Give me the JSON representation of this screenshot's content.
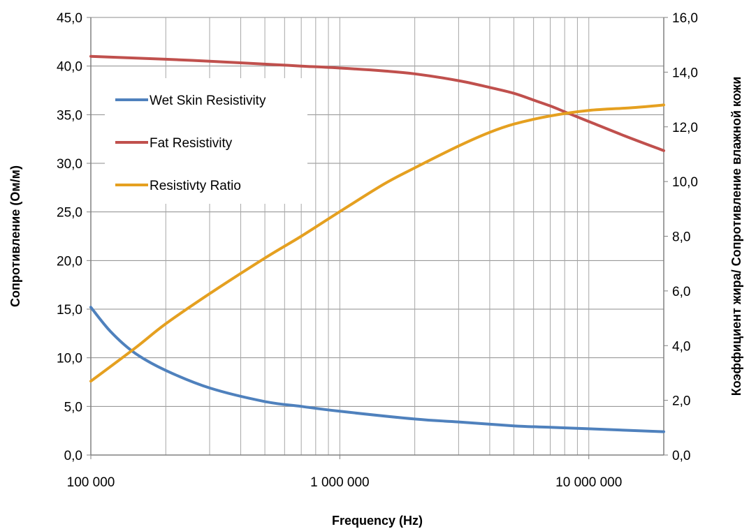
{
  "chart_data": {
    "type": "line",
    "xlabel": "Frequency (Hz)",
    "ylabel": "Сопротивление (Ом/м)",
    "y2label": "Коэффициент жира/ Сопротивление влажной кожи",
    "x_scale": "log",
    "xlim": [
      100000,
      20000000
    ],
    "ylim": [
      0,
      45
    ],
    "y2lim": [
      0,
      16
    ],
    "grid": true,
    "legend_position": "top-left",
    "x_ticks": [
      100000,
      1000000,
      10000000
    ],
    "x_tick_labels": [
      "100 000",
      "1 000 000",
      "10 000 000"
    ],
    "y_ticks": [
      0,
      5,
      10,
      15,
      20,
      25,
      30,
      35,
      40,
      45
    ],
    "y_tick_labels": [
      "0,0",
      "5,0",
      "10,0",
      "15,0",
      "20,0",
      "25,0",
      "30,0",
      "35,0",
      "40,0",
      "45,0"
    ],
    "y2_ticks": [
      0,
      2,
      4,
      6,
      8,
      10,
      12,
      14,
      16
    ],
    "y2_tick_labels": [
      "0,0",
      "2,0",
      "4,0",
      "6,0",
      "8,0",
      "10,0",
      "12,0",
      "14,0",
      "16,0"
    ],
    "series": [
      {
        "name": "Wet Skin Resistivity",
        "color": "#4F81BD",
        "axis": "left",
        "x": [
          100000,
          120000,
          150000,
          200000,
          300000,
          500000,
          700000,
          1000000,
          2000000,
          3000000,
          5000000,
          7000000,
          10000000,
          20000000
        ],
        "y": [
          15.2,
          12.7,
          10.5,
          8.7,
          6.9,
          5.5,
          5.0,
          4.5,
          3.7,
          3.4,
          3.0,
          2.85,
          2.7,
          2.4
        ]
      },
      {
        "name": "Fat Resistivity",
        "color": "#C0504D",
        "axis": "left",
        "x": [
          100000,
          200000,
          300000,
          500000,
          700000,
          1000000,
          1500000,
          2000000,
          3000000,
          4000000,
          5000000,
          6000000,
          7000000,
          8000000,
          10000000,
          14000000,
          20000000
        ],
        "y": [
          41.0,
          40.7,
          40.5,
          40.2,
          40.0,
          39.8,
          39.5,
          39.2,
          38.5,
          37.8,
          37.2,
          36.5,
          35.9,
          35.3,
          34.3,
          32.8,
          31.3
        ]
      },
      {
        "name": "Resistivty Ratio",
        "color": "#E5A020",
        "axis": "right",
        "x": [
          100000,
          150000,
          200000,
          300000,
          500000,
          700000,
          1000000,
          1500000,
          2000000,
          3000000,
          4000000,
          5000000,
          7000000,
          10000000,
          15000000,
          20000000
        ],
        "y": [
          2.7,
          3.9,
          4.8,
          5.9,
          7.2,
          8.0,
          8.9,
          9.9,
          10.5,
          11.3,
          11.8,
          12.1,
          12.4,
          12.6,
          12.7,
          12.8
        ]
      }
    ]
  }
}
